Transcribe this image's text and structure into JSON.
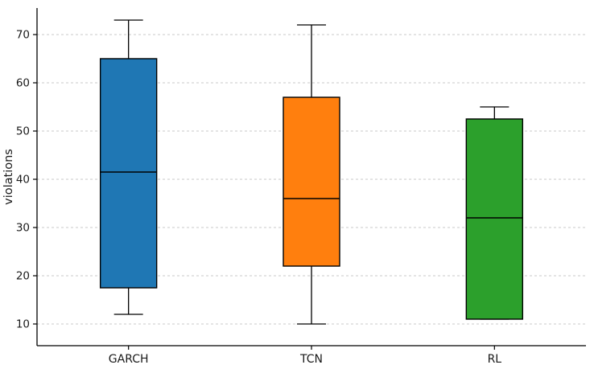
{
  "chart_data": {
    "type": "boxplot",
    "title": "",
    "xlabel": "",
    "ylabel": "violations",
    "categories": [
      "GARCH",
      "TCN",
      "RL"
    ],
    "series": [
      {
        "name": "GARCH",
        "whisker_low": 12,
        "q1": 17.5,
        "median": 41.5,
        "q3": 65,
        "whisker_high": 73,
        "color": "#1f77b4"
      },
      {
        "name": "TCN",
        "whisker_low": 10,
        "q1": 22,
        "median": 36,
        "q3": 57,
        "whisker_high": 72,
        "color": "#ff7f0e"
      },
      {
        "name": "RL",
        "whisker_low": 11,
        "q1": 11,
        "median": 32,
        "q3": 52.5,
        "whisker_high": 55,
        "color": "#2ca02c"
      }
    ],
    "yticks": [
      10,
      20,
      30,
      40,
      50,
      60,
      70
    ],
    "ylim": [
      5.5,
      75.5
    ],
    "grid": "dashed-horizontal",
    "grid_color": "#c8c8c8",
    "box_edge_color": "#000000",
    "median_color": "#000000",
    "legend": "none"
  }
}
